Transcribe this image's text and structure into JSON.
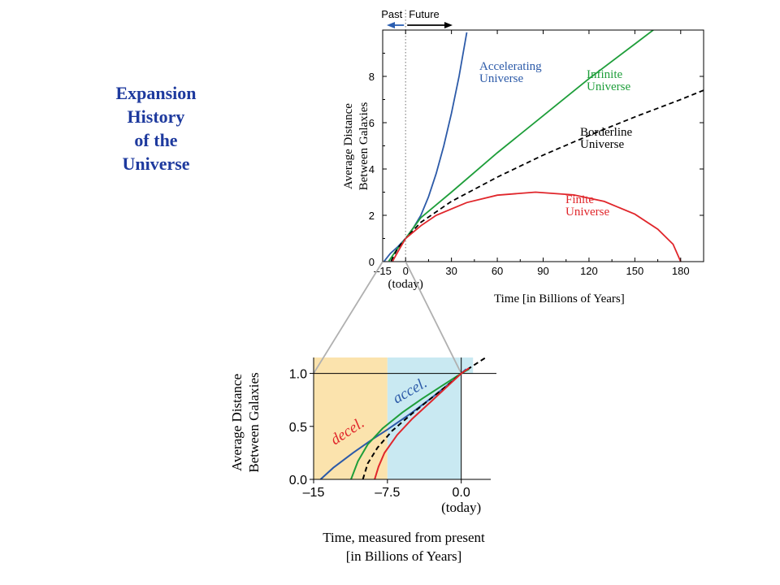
{
  "title_lines": [
    "Expansion",
    "History",
    "of the",
    "Universe"
  ],
  "arrows": {
    "past": "Past",
    "future": "Future",
    "past_color": "#2a5db0",
    "future_color": "#000000"
  },
  "colors": {
    "accelerating": "#2c5aa8",
    "infinite": "#1e9e3a",
    "borderline": "#000000",
    "finite": "#e0262b",
    "decel_zone": "#fbe3ad",
    "accel_zone": "#c9e9f2",
    "guide": "#b0b0b0"
  },
  "chart_data": [
    {
      "type": "line",
      "ylabel_lines": [
        "Average Distance",
        "Between Galaxies"
      ],
      "xlabel": "Time   [in Billions of Years]",
      "xlim": [
        -15,
        195
      ],
      "ylim": [
        0,
        10
      ],
      "x_ticks": [
        -15,
        0,
        30,
        60,
        90,
        120,
        150,
        180
      ],
      "x_tick_labels": [
        "–15",
        "0",
        "30",
        "60",
        "90",
        "120",
        "150",
        "180"
      ],
      "y_ticks": [
        0,
        2,
        4,
        6,
        8
      ],
      "today_label": "(today)",
      "series": [
        {
          "name_lines": [
            "Accelerating",
            "Universe"
          ],
          "color": "#2c5aa8",
          "dashed": false,
          "points": [
            [
              -14,
              0.02
            ],
            [
              -10,
              0.35
            ],
            [
              -5,
              0.65
            ],
            [
              0,
              1.0
            ],
            [
              5,
              1.45
            ],
            [
              10,
              2.0
            ],
            [
              15,
              2.8
            ],
            [
              20,
              3.8
            ],
            [
              25,
              5.0
            ],
            [
              30,
              6.4
            ],
            [
              35,
              8.0
            ],
            [
              40,
              9.9
            ]
          ]
        },
        {
          "name_lines": [
            "Infinite",
            "Universe"
          ],
          "color": "#1e9e3a",
          "dashed": false,
          "points": [
            [
              -11,
              0.02
            ],
            [
              -6,
              0.5
            ],
            [
              0,
              1.0
            ],
            [
              10,
              1.9
            ],
            [
              30,
              3.0
            ],
            [
              60,
              4.7
            ],
            [
              90,
              6.3
            ],
            [
              120,
              7.9
            ],
            [
              150,
              9.4
            ],
            [
              170,
              10.4
            ]
          ]
        },
        {
          "name_lines": [
            "Borderline",
            "Universe"
          ],
          "color": "#000000",
          "dashed": true,
          "points": [
            [
              -9.5,
              0.02
            ],
            [
              -5,
              0.6
            ],
            [
              0,
              1.0
            ],
            [
              10,
              1.7
            ],
            [
              30,
              2.6
            ],
            [
              60,
              3.65
            ],
            [
              90,
              4.6
            ],
            [
              120,
              5.45
            ],
            [
              150,
              6.25
            ],
            [
              180,
              7.0
            ],
            [
              195,
              7.4
            ]
          ]
        },
        {
          "name_lines": [
            "Finite",
            "Universe"
          ],
          "color": "#e0262b",
          "dashed": false,
          "points": [
            [
              -8.5,
              0.02
            ],
            [
              -4,
              0.55
            ],
            [
              0,
              1.0
            ],
            [
              10,
              1.55
            ],
            [
              20,
              2.0
            ],
            [
              40,
              2.55
            ],
            [
              60,
              2.87
            ],
            [
              85,
              3.0
            ],
            [
              110,
              2.88
            ],
            [
              130,
              2.6
            ],
            [
              150,
              2.05
            ],
            [
              165,
              1.4
            ],
            [
              175,
              0.75
            ],
            [
              180,
              0.0
            ]
          ]
        }
      ]
    },
    {
      "type": "line",
      "ylabel_lines": [
        "Average Distance",
        "Between Galaxies"
      ],
      "xlabel_lines": [
        "Time,  measured from present",
        "[in Billions of  Years]"
      ],
      "xlim": [
        -15,
        3
      ],
      "ylim": [
        0,
        1.15
      ],
      "x_ticks": [
        -15,
        -7.5,
        0
      ],
      "x_tick_labels": [
        "–15",
        "–7.5",
        "0.0"
      ],
      "y_ticks": [
        0,
        0.5,
        1.0
      ],
      "y_tick_labels": [
        "0.0",
        "0.5",
        "1.0"
      ],
      "today_label": "(today)",
      "reference_line": 1.0,
      "zones": [
        {
          "label": "decel.",
          "from": -15,
          "to": -7.5,
          "color": "#fbe3ad",
          "text_color": "#e0262b"
        },
        {
          "label": "accel.",
          "from": -7.5,
          "to": 1.2,
          "color": "#c9e9f2",
          "text_color": "#2c5aa8"
        }
      ],
      "series": [
        {
          "name": "Accelerating",
          "color": "#2c5aa8",
          "dashed": false,
          "points": [
            [
              -14.3,
              0.0
            ],
            [
              -13,
              0.11
            ],
            [
              -11,
              0.25
            ],
            [
              -9,
              0.38
            ],
            [
              -7.5,
              0.47
            ],
            [
              -5,
              0.63
            ],
            [
              -3,
              0.77
            ],
            [
              -1,
              0.92
            ],
            [
              0,
              1.0
            ],
            [
              0.5,
              1.04
            ]
          ]
        },
        {
          "name": "Infinite",
          "color": "#1e9e3a",
          "dashed": false,
          "points": [
            [
              -11.2,
              0.0
            ],
            [
              -10.5,
              0.17
            ],
            [
              -9.5,
              0.33
            ],
            [
              -8,
              0.48
            ],
            [
              -6,
              0.63
            ],
            [
              -4,
              0.76
            ],
            [
              -2,
              0.88
            ],
            [
              0,
              1.0
            ],
            [
              0.8,
              1.04
            ]
          ]
        },
        {
          "name": "Borderline",
          "color": "#000000",
          "dashed": true,
          "points": [
            [
              -10.0,
              0.0
            ],
            [
              -9.5,
              0.15
            ],
            [
              -8.5,
              0.3
            ],
            [
              -7,
              0.46
            ],
            [
              -5,
              0.62
            ],
            [
              -3,
              0.77
            ],
            [
              -1.5,
              0.88
            ],
            [
              0,
              1.0
            ],
            [
              1.5,
              1.09
            ],
            [
              3,
              1.18
            ]
          ]
        },
        {
          "name": "Finite",
          "color": "#e0262b",
          "dashed": false,
          "points": [
            [
              -8.8,
              0.0
            ],
            [
              -8.4,
              0.12
            ],
            [
              -7.8,
              0.25
            ],
            [
              -6.5,
              0.42
            ],
            [
              -5,
              0.57
            ],
            [
              -3,
              0.74
            ],
            [
              -1.5,
              0.87
            ],
            [
              0,
              1.0
            ],
            [
              0.8,
              1.05
            ]
          ]
        }
      ]
    }
  ]
}
